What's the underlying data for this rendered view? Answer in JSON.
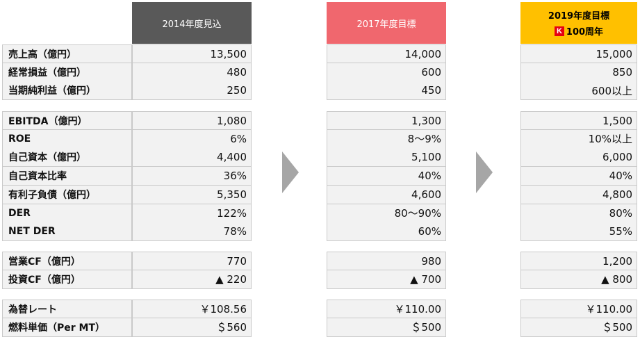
{
  "headers": {
    "col_2014": "2014年度見込",
    "col_2017": "2017年度目標",
    "col_2019_line1": "2019年度目標",
    "col_2019_logo": "K",
    "col_2019_line2": "100周年"
  },
  "groups": [
    {
      "rows": [
        {
          "label": "売上高（億円）",
          "v2014": "13,500",
          "v2017": "14,000",
          "v2019": "15,000"
        },
        {
          "label": "経常損益（億円）",
          "v2014": "480",
          "v2017": "600",
          "v2019": "850"
        },
        {
          "label": "当期純利益（億円）",
          "v2014": "250",
          "v2017": "450",
          "v2019": "600以上"
        }
      ]
    },
    {
      "rows": [
        {
          "label": "EBITDA（億円）",
          "v2014": "1,080",
          "v2017": "1,300",
          "v2019": "1,500"
        },
        {
          "label": "ROE",
          "v2014": "6%",
          "v2017": "8～9%",
          "v2019": "10%以上"
        },
        {
          "label": "自己資本（億円）",
          "v2014": "4,400",
          "v2017": "5,100",
          "v2019": "6,000"
        },
        {
          "label": "自己資本比率",
          "v2014": "36%",
          "v2017": "40%",
          "v2019": "40%"
        },
        {
          "label": "有利子負債（億円）",
          "v2014": "5,350",
          "v2017": "4,600",
          "v2019": "4,800"
        },
        {
          "label": "DER",
          "v2014": "122%",
          "v2017": "80～90%",
          "v2019": "80%"
        },
        {
          "label": "NET DER",
          "v2014": "78%",
          "v2017": "60%",
          "v2019": "55%"
        }
      ]
    },
    {
      "rows": [
        {
          "label": "営業CF（億円）",
          "v2014": "770",
          "v2017": "980",
          "v2019": "1,200"
        },
        {
          "label": "投資CF（億円）",
          "v2014": "▲ 220",
          "v2017": "▲ 700",
          "v2019": "▲ 800"
        }
      ]
    },
    {
      "rows": [
        {
          "label": "為替レート",
          "v2014": "￥108.56",
          "v2017": "￥110.00",
          "v2019": "￥110.00"
        },
        {
          "label": "燃料単価（Per MT）",
          "v2014": "＄560",
          "v2017": "＄500",
          "v2019": "＄500"
        }
      ]
    }
  ],
  "colors": {
    "header_2014": "#595959",
    "header_2017": "#f0676e",
    "header_2019": "#ffc000",
    "cell_bg": "#f2f2f2",
    "arrow": "#a6a6a6"
  },
  "icons": [
    "chevron-right-icon",
    "chevron-right-icon",
    "k-logo-icon"
  ]
}
